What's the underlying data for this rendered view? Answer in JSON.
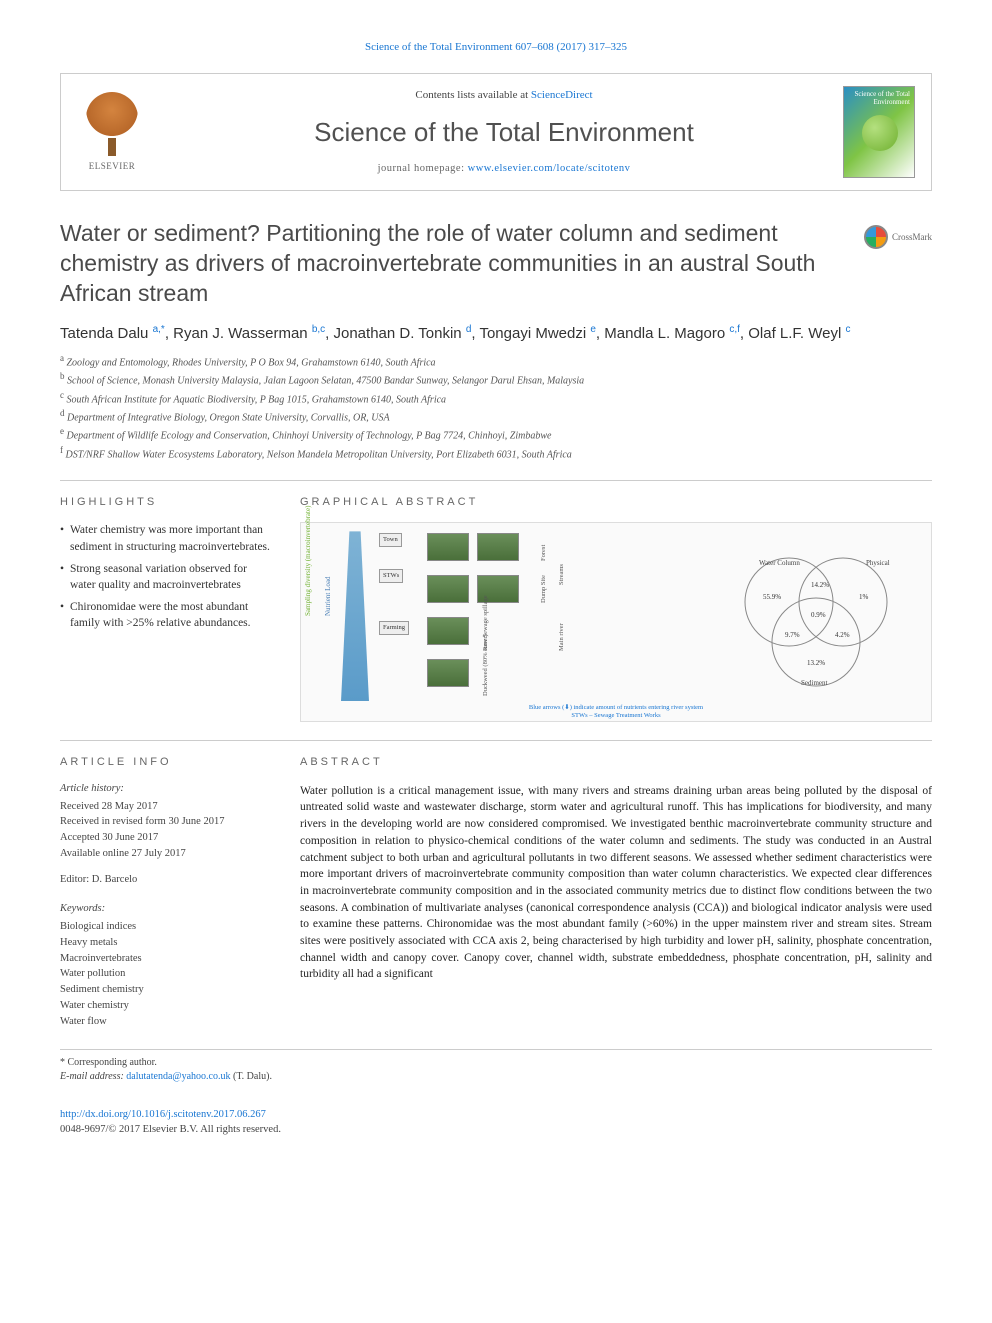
{
  "topLink": {
    "journal": "Science of the Total Environment",
    "volpages": "607–608 (2017) 317–325"
  },
  "masthead": {
    "elsevier": "ELSEVIER",
    "contentsPrefix": "Contents lists available at ",
    "contentsLink": "ScienceDirect",
    "journalName": "Science of the Total Environment",
    "homepagePrefix": "journal homepage: ",
    "homepageLink": "www.elsevier.com/locate/scitotenv",
    "coverLabel": "Science of the Total Environment"
  },
  "crossmark": "CrossMark",
  "title": "Water or sediment? Partitioning the role of water column and sediment chemistry as drivers of macroinvertebrate communities in an austral South African stream",
  "authors": [
    {
      "name": "Tatenda Dalu",
      "sup": "a,*"
    },
    {
      "name": "Ryan J. Wasserman",
      "sup": "b,c"
    },
    {
      "name": "Jonathan D. Tonkin",
      "sup": "d"
    },
    {
      "name": "Tongayi Mwedzi",
      "sup": "e"
    },
    {
      "name": "Mandla L. Magoro",
      "sup": "c,f"
    },
    {
      "name": "Olaf L.F. Weyl",
      "sup": "c"
    }
  ],
  "affiliations": [
    {
      "key": "a",
      "text": "Zoology and Entomology, Rhodes University, P O Box 94, Grahamstown 6140, South Africa"
    },
    {
      "key": "b",
      "text": "School of Science, Monash University Malaysia, Jalan Lagoon Selatan, 47500 Bandar Sunway, Selangor Darul Ehsan, Malaysia"
    },
    {
      "key": "c",
      "text": "South African Institute for Aquatic Biodiversity, P Bag 1015, Grahamstown 6140, South Africa"
    },
    {
      "key": "d",
      "text": "Department of Integrative Biology, Oregon State University, Corvallis, OR, USA"
    },
    {
      "key": "e",
      "text": "Department of Wildlife Ecology and Conservation, Chinhoyi University of Technology, P Bag 7724, Chinhoyi, Zimbabwe"
    },
    {
      "key": "f",
      "text": "DST/NRF Shallow Water Ecosystems Laboratory, Nelson Mandela Metropolitan University, Port Elizabeth 6031, South Africa"
    }
  ],
  "highlightsLabel": "HIGHLIGHTS",
  "highlights": [
    "Water chemistry was more important than sediment in structuring macroinvertebrates.",
    "Strong seasonal variation observed for water quality and macroinvertebrates",
    "Chironomidae were the most abundant family with >25% relative abundances."
  ],
  "graphicalAbstractLabel": "GRAPHICAL ABSTRACT",
  "graphicalAbstract": {
    "yAxisLabel": "Sampling diversity (macroinvertebrate)",
    "nutrientLabel": "Nutrient Load",
    "flowBoxes": [
      "Town",
      "STWs",
      "Farming"
    ],
    "rightLabels": [
      "Forest",
      "Dump Site",
      "Streams",
      "Main river"
    ],
    "middleLabels": [
      "Raw Sewage spillage",
      "Duckweed (80% cover)"
    ],
    "venn": {
      "labels": [
        "Water Column",
        "Physical",
        "Sediment"
      ],
      "values": {
        "water": "55.9%",
        "physical": "1%",
        "sediment": "13.2%",
        "wp": "14.2%",
        "ws": "9.7%",
        "ps": "4.2%",
        "center": "0.9%"
      },
      "circle_color": "#888888",
      "label_fontsize": 7,
      "value_fontsize": 7
    },
    "captionLine1": "Blue arrows (⬇) indicate amount of nutrients entering river system",
    "captionLine2": "STWs – Sewage Treatment Works",
    "river_color_top": "#7fb3d5",
    "river_color_bottom": "#5a9bc9",
    "thumb_color_top": "#6a8f5a",
    "thumb_color_bottom": "#4a6f3a"
  },
  "articleInfoLabel": "ARTICLE INFO",
  "articleInfo": {
    "historyLabel": "Article history:",
    "history": [
      "Received 28 May 2017",
      "Received in revised form 30 June 2017",
      "Accepted 30 June 2017",
      "Available online 27 July 2017"
    ],
    "editorLabel": "Editor: D. Barcelo",
    "keywordsLabel": "Keywords:",
    "keywords": [
      "Biological indices",
      "Heavy metals",
      "Macroinvertebrates",
      "Water pollution",
      "Sediment chemistry",
      "Water chemistry",
      "Water flow"
    ]
  },
  "abstractLabel": "ABSTRACT",
  "abstract": "Water pollution is a critical management issue, with many rivers and streams draining urban areas being polluted by the disposal of untreated solid waste and wastewater discharge, storm water and agricultural runoff. This has implications for biodiversity, and many rivers in the developing world are now considered compromised. We investigated benthic macroinvertebrate community structure and composition in relation to physico-chemical conditions of the water column and sediments. The study was conducted in an Austral catchment subject to both urban and agricultural pollutants in two different seasons. We assessed whether sediment characteristics were more important drivers of macroinvertebrate community composition than water column characteristics. We expected clear differences in macroinvertebrate community composition and in the associated community metrics due to distinct flow conditions between the two seasons. A combination of multivariate analyses (canonical correspondence analysis (CCA)) and biological indicator analysis were used to examine these patterns. Chironomidae was the most abundant family (>60%) in the upper mainstem river and stream sites. Stream sites were positively associated with CCA axis 2, being characterised by high turbidity and lower pH, salinity, phosphate concentration, channel width and canopy cover. Canopy cover, channel width, substrate embeddedness, phosphate concentration, pH, salinity and turbidity all had a significant",
  "corresponding": {
    "label": "* Corresponding author.",
    "emailLabel": "E-mail address:",
    "email": "dalutatenda@yahoo.co.uk",
    "person": "(T. Dalu)."
  },
  "footer": {
    "doi": "http://dx.doi.org/10.1016/j.scitotenv.2017.06.267",
    "copyright": "0048-9697/© 2017 Elsevier B.V. All rights reserved."
  },
  "colors": {
    "link": "#1976d2",
    "text": "#333333",
    "heading": "#4a4a4a",
    "border": "#cccccc"
  }
}
